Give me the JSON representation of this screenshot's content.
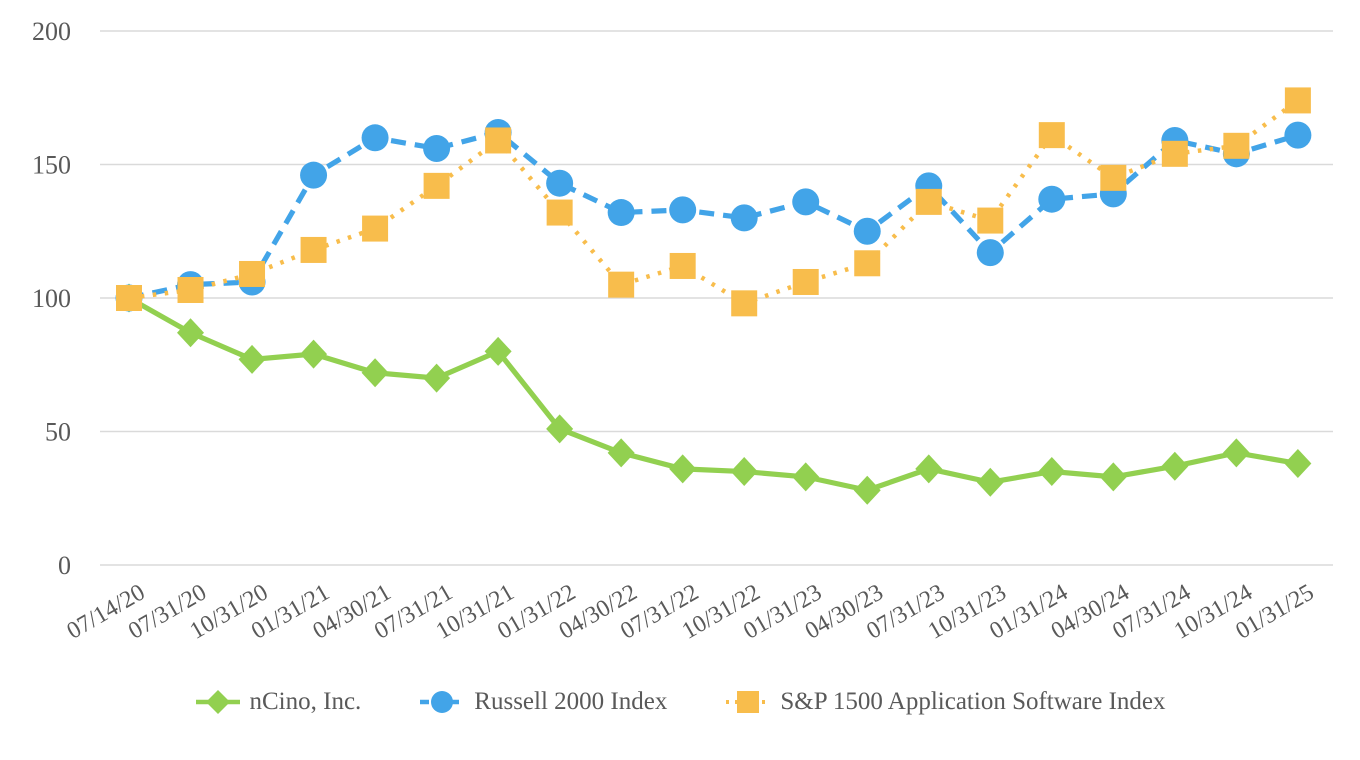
{
  "chart_data": {
    "type": "line",
    "title": "",
    "xlabel": "",
    "ylabel": "",
    "categories": [
      "07/14/20",
      "07/31/20",
      "10/31/20",
      "01/31/21",
      "04/30/21",
      "07/31/21",
      "10/31/21",
      "01/31/22",
      "04/30/22",
      "07/31/22",
      "10/31/22",
      "01/31/23",
      "04/30/23",
      "07/31/23",
      "10/31/23",
      "01/31/24",
      "04/30/24",
      "07/31/24",
      "10/31/24",
      "01/31/25"
    ],
    "series": [
      {
        "name": "nCino, Inc.",
        "color": "#92D050",
        "marker": "diamond",
        "line_style": "solid",
        "values": [
          100,
          87,
          77,
          79,
          72,
          70,
          80,
          51,
          42,
          36,
          35,
          33,
          28,
          36,
          31,
          35,
          33,
          37,
          42,
          38
        ]
      },
      {
        "name": "Russell 2000 Index",
        "color": "#42A4E8",
        "marker": "circle",
        "line_style": "dashed",
        "values": [
          100,
          105,
          106,
          146,
          160,
          156,
          162,
          143,
          132,
          133,
          130,
          136,
          125,
          142,
          117,
          137,
          139,
          159,
          154,
          161
        ]
      },
      {
        "name": "S&P 1500 Application Software Index",
        "color": "#F8BD4C",
        "marker": "square",
        "line_style": "dotted",
        "values": [
          100,
          103,
          109,
          118,
          126,
          142,
          159,
          132,
          105,
          112,
          98,
          106,
          113,
          136,
          129,
          161,
          145,
          154,
          157,
          174
        ]
      }
    ],
    "ylim": [
      0,
      200
    ],
    "yticks": [
      0,
      50,
      100,
      150,
      200
    ],
    "grid": true,
    "legend_position": "bottom",
    "text_color": "#595959",
    "gridline_color": "#DADADA"
  }
}
